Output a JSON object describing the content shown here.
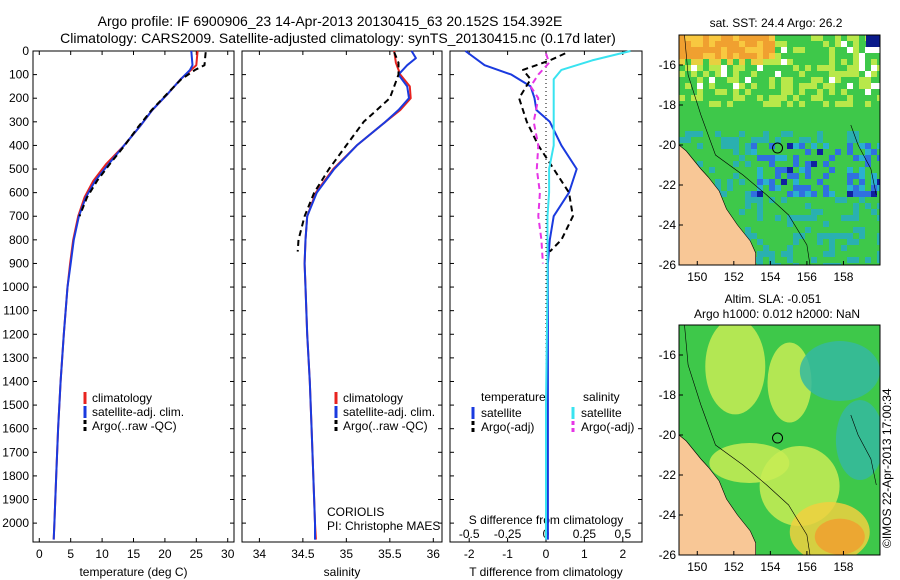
{
  "header": {
    "title_line1": "Argo profile: IF 6900906_23 14-Apr-2013 20130415_63 20.152S 154.392E",
    "title_line2": "Climatology: CARS2009. Satellite-adjusted climatology: synTS_20130415.nc (0.17d later)"
  },
  "colors": {
    "climatology": "#e8231f",
    "satellite": "#1a3adf",
    "argo": "#000000",
    "salinity_sat": "#39e3f0",
    "salinity_argo": "#e635e6",
    "land": "#f8c796",
    "ocean_green": "#3ec84a",
    "ocean_light": "#b8e84a",
    "ocean_teal": "#35b8a0"
  },
  "chart_data": [
    {
      "id": "temperature",
      "type": "line",
      "xlabel": "temperature (deg C)",
      "xlim": [
        -1,
        31
      ],
      "xticks": [
        "0",
        "5",
        "10",
        "15",
        "20",
        "25",
        "30"
      ],
      "ylim": [
        0,
        2080
      ],
      "yticks": [
        "0",
        "100",
        "200",
        "300",
        "400",
        "500",
        "600",
        "700",
        "800",
        "900",
        "1000",
        "1100",
        "1200",
        "1300",
        "1400",
        "1500",
        "1600",
        "1700",
        "1800",
        "1900",
        "2000"
      ],
      "legend": [
        "climatology",
        "satellite-adj. clim.",
        "Argo(..raw -QC)"
      ],
      "series": [
        {
          "name": "climatology",
          "depth": [
            0,
            60,
            120,
            180,
            250,
            320,
            400,
            480,
            550,
            620,
            700,
            800,
            900,
            1000,
            1200,
            1400,
            1600,
            1800,
            2000,
            2070
          ],
          "values": [
            25.2,
            25.0,
            22.5,
            20.5,
            18.0,
            16.0,
            13.5,
            10.6,
            8.6,
            7.2,
            6.2,
            5.4,
            4.9,
            4.5,
            3.9,
            3.4,
            3.0,
            2.7,
            2.4,
            2.3
          ]
        },
        {
          "name": "satellite-adj. clim.",
          "depth": [
            0,
            60,
            80,
            120,
            180,
            250,
            320,
            400,
            480,
            550,
            620,
            700,
            800,
            900,
            1000,
            1200,
            1400,
            1600,
            1800,
            2000,
            2070
          ],
          "values": [
            24.2,
            24.4,
            24.0,
            22.5,
            20.5,
            18.0,
            16.0,
            13.5,
            11.0,
            8.9,
            7.4,
            6.3,
            5.5,
            5.0,
            4.5,
            3.9,
            3.4,
            3.0,
            2.7,
            2.4,
            2.3
          ]
        },
        {
          "name": "Argo(..raw -QC)",
          "depth": [
            5,
            30,
            60,
            80,
            120,
            180,
            250,
            320,
            400,
            480,
            550,
            620,
            700
          ],
          "values": [
            26.5,
            26.4,
            26.3,
            24.8,
            22.6,
            20.4,
            17.9,
            15.8,
            13.6,
            11.2,
            9.2,
            7.6,
            6.4
          ]
        }
      ]
    },
    {
      "id": "salinity",
      "type": "line",
      "xlabel": "salinity",
      "xlim": [
        33.8,
        36.1
      ],
      "xticks": [
        "34",
        "34.5",
        "35",
        "35.5",
        "36"
      ],
      "ylim": [
        0,
        2080
      ],
      "legend": [
        "climatology",
        "satellite-adj. clim.",
        "Argo(..raw -QC)"
      ],
      "annotations": [
        "CORIOLIS",
        "PI: Christophe MAES"
      ],
      "series": [
        {
          "name": "climatology",
          "depth": [
            0,
            50,
            100,
            150,
            200,
            250,
            300,
            400,
            500,
            600,
            700,
            800,
            900,
            1000,
            1200,
            1400,
            1600,
            1800,
            2000,
            2070
          ],
          "values": [
            35.55,
            35.57,
            35.62,
            35.73,
            35.74,
            35.62,
            35.45,
            35.12,
            34.85,
            34.65,
            34.55,
            34.53,
            34.52,
            34.53,
            34.55,
            34.58,
            34.6,
            34.62,
            34.64,
            34.65
          ]
        },
        {
          "name": "satellite-adj. clim.",
          "depth": [
            0,
            30,
            60,
            100,
            150,
            200,
            250,
            300,
            400,
            500,
            600,
            700,
            800,
            900,
            1000,
            1200,
            1400,
            1600,
            1800,
            2000,
            2070
          ],
          "values": [
            35.75,
            35.8,
            35.7,
            35.6,
            35.7,
            35.72,
            35.6,
            35.45,
            35.12,
            34.86,
            34.66,
            34.55,
            34.53,
            34.52,
            34.53,
            34.55,
            34.58,
            34.6,
            34.62,
            34.64,
            34.64
          ]
        },
        {
          "name": "Argo(..raw -QC)",
          "depth": [
            5,
            50,
            100,
            150,
            200,
            250,
            300,
            400,
            500,
            600,
            700,
            800,
            850
          ],
          "values": [
            35.55,
            35.6,
            35.6,
            35.55,
            35.5,
            35.35,
            35.2,
            35.0,
            34.8,
            34.63,
            34.52,
            34.45,
            34.44
          ]
        }
      ]
    },
    {
      "id": "difference",
      "type": "line",
      "xlabel": "T difference from climatology",
      "xlabel_top": "S difference from climatology",
      "xlim": [
        -2.5,
        2.5
      ],
      "xticks": [
        "-2",
        "-1",
        "0",
        "1",
        "2"
      ],
      "xticks_top": [
        "-0.5",
        "-0.25",
        "0",
        "0.25",
        "0.5"
      ],
      "ylim": [
        0,
        2080
      ],
      "legend": {
        "temperature_heading": "temperature",
        "salinity_heading": "salinity",
        "entries": [
          "satellite",
          "Argo(-adj)",
          "satellite",
          "Argo(-adj)"
        ]
      },
      "series": [
        {
          "name": "temperature satellite",
          "depth": [
            0,
            60,
            100,
            150,
            200,
            250,
            300,
            400,
            500,
            600,
            700,
            800,
            900,
            1000,
            1500,
            2000,
            2070
          ],
          "values": [
            -2.1,
            -1.6,
            -0.9,
            -0.4,
            -0.3,
            -0.25,
            0.1,
            0.4,
            0.8,
            0.6,
            0.2,
            0.1,
            0.05,
            0.05,
            0.05,
            0.05,
            0.05
          ]
        },
        {
          "name": "temperature Argo(-adj)",
          "depth": [
            10,
            40,
            80,
            120,
            200,
            300,
            400,
            500,
            600,
            700,
            800,
            850
          ],
          "values": [
            0.5,
            0.1,
            -0.6,
            -0.4,
            -0.7,
            -0.5,
            -0.2,
            0.2,
            0.6,
            0.7,
            0.4,
            0.1
          ]
        },
        {
          "name": "salinity satellite",
          "depth": [
            0,
            40,
            80,
            120,
            200,
            300,
            400,
            500,
            600,
            700,
            800,
            1000,
            1500,
            2000,
            2070
          ],
          "values": [
            0.55,
            0.3,
            0.1,
            0.05,
            0.05,
            0.05,
            0.05,
            0.02,
            0.02,
            0.01,
            0.01,
            0.01,
            0.0,
            0.0,
            0.0
          ]
        },
        {
          "name": "salinity Argo(-adj)",
          "depth": [
            10,
            50,
            100,
            150,
            200,
            300,
            400,
            500,
            600,
            700,
            800,
            900
          ],
          "values": [
            0.0,
            0.02,
            -0.05,
            -0.1,
            -0.05,
            -0.08,
            -0.05,
            -0.06,
            -0.04,
            -0.05,
            -0.03,
            -0.02
          ]
        }
      ]
    },
    {
      "id": "sst_map",
      "type": "heatmap",
      "title": "sat. SST: 24.4 Argo: 26.2",
      "xticks": [
        "150",
        "152",
        "154",
        "156",
        "158"
      ],
      "yticks": [
        "-16",
        "-18",
        "-20",
        "-22",
        "-24",
        "-26"
      ],
      "xlim": [
        149,
        160
      ],
      "ylim": [
        -26,
        -14.5
      ],
      "marker": {
        "lon": 154.392,
        "lat": -20.152
      }
    },
    {
      "id": "sla_map",
      "type": "heatmap",
      "title_line1": "Altim. SLA: -0.051",
      "title_line2": "Argo h1000: 0.012 h2000: NaN",
      "xticks": [
        "150",
        "152",
        "154",
        "156",
        "158"
      ],
      "yticks": [
        "-16",
        "-18",
        "-20",
        "-22",
        "-24",
        "-26"
      ],
      "xlim": [
        149,
        160
      ],
      "ylim": [
        -26,
        -14.5
      ],
      "marker": {
        "lon": 154.392,
        "lat": -20.152
      }
    }
  ],
  "side_stamp": "©IMOS 22-Apr-2013 17:00:34"
}
